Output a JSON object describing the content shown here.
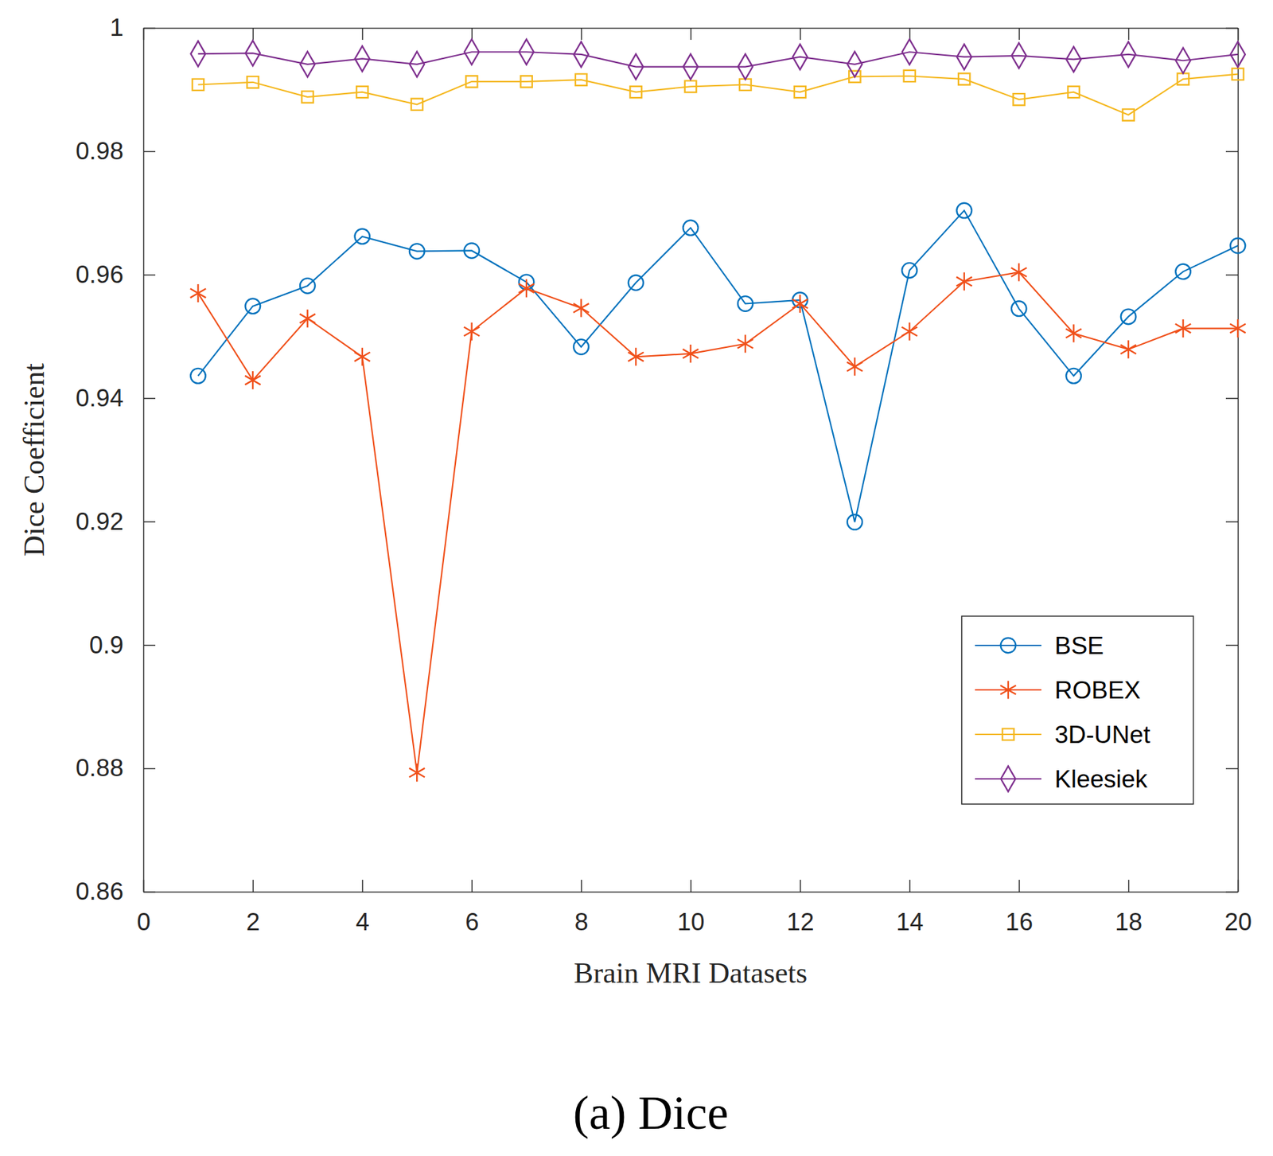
{
  "chart_data": {
    "type": "line",
    "title": "(a) Dice",
    "x_label": "Brain MRI Datasets",
    "y_label": "Dice Coefficient",
    "x": [
      1,
      2,
      3,
      4,
      5,
      6,
      7,
      8,
      9,
      10,
      11,
      12,
      13,
      14,
      15,
      16,
      17,
      18,
      19,
      20
    ],
    "xlim": [
      0,
      20
    ],
    "xticks": [
      0,
      2,
      4,
      6,
      8,
      10,
      12,
      14,
      16,
      18,
      20
    ],
    "ylim": [
      0.86,
      1
    ],
    "yticks": [
      0.86,
      0.88,
      0.9,
      0.92,
      0.94,
      0.96,
      0.98,
      1
    ],
    "grid": false,
    "legend": "lower right",
    "series": [
      {
        "name": "BSE",
        "color": "#0072BD",
        "marker": "circle",
        "line_style": "solid",
        "values": [
          0.9436,
          0.9549,
          0.9582,
          0.9662,
          0.9638,
          0.9639,
          0.9588,
          0.9483,
          0.9587,
          0.9676,
          0.9553,
          0.9559,
          0.9199,
          0.9607,
          0.9704,
          0.9545,
          0.9436,
          0.9532,
          0.9605,
          0.9647
        ]
      },
      {
        "name": "ROBEX",
        "color": "#F0501A",
        "marker": "asterisk",
        "line_style": "solid",
        "values": [
          0.957,
          0.9429,
          0.9529,
          0.9467,
          0.8793,
          0.9508,
          0.9578,
          0.9546,
          0.9467,
          0.9472,
          0.9488,
          0.9553,
          0.9451,
          0.9508,
          0.9589,
          0.9604,
          0.9505,
          0.9479,
          0.9513,
          0.9513
        ]
      },
      {
        "name": "3D-UNet",
        "color": "#F5B820",
        "marker": "square",
        "line_style": "solid",
        "values": [
          0.9908,
          0.9912,
          0.9888,
          0.9896,
          0.9876,
          0.9913,
          0.9913,
          0.9916,
          0.9896,
          0.9905,
          0.9908,
          0.9896,
          0.9921,
          0.9922,
          0.9917,
          0.9884,
          0.9896,
          0.9859,
          0.9917,
          0.9925
        ]
      },
      {
        "name": "Kleesiek",
        "color": "#7E2F8E",
        "marker": "diamond",
        "line_style": "solid",
        "values": [
          0.9958,
          0.9959,
          0.9941,
          0.995,
          0.9941,
          0.9961,
          0.9961,
          0.9957,
          0.9937,
          0.9937,
          0.9937,
          0.9953,
          0.9941,
          0.9961,
          0.9953,
          0.9955,
          0.9949,
          0.9957,
          0.9947,
          0.9957
        ]
      }
    ]
  }
}
